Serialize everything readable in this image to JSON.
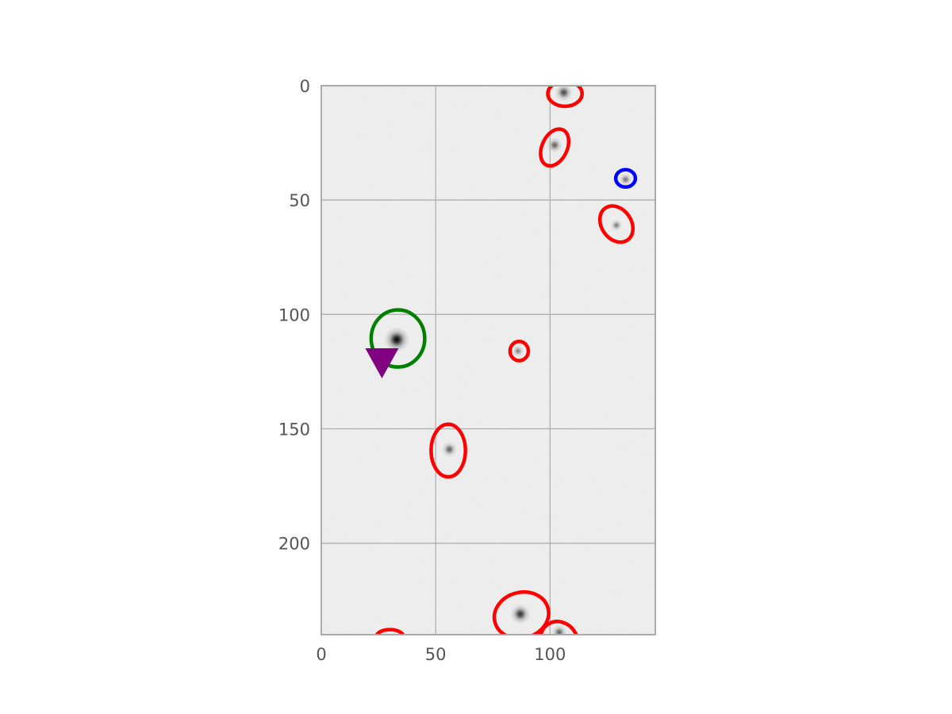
{
  "chart_data": {
    "type": "scatter",
    "title": "",
    "xlabel": "",
    "ylabel": "",
    "xlim": [
      0,
      146
    ],
    "ylim": [
      240,
      0
    ],
    "y_inverted": true,
    "grid": true,
    "background": "grayscale astronomical image",
    "x_ticks": [
      0,
      50,
      100
    ],
    "y_ticks": [
      0,
      50,
      100,
      150,
      200
    ],
    "sources": [
      {
        "x": 106,
        "y": 3,
        "brightness": 0.55
      },
      {
        "x": 102,
        "y": 26,
        "brightness": 0.4
      },
      {
        "x": 133,
        "y": 41,
        "brightness": 0.25
      },
      {
        "x": 129,
        "y": 61,
        "brightness": 0.2
      },
      {
        "x": 33,
        "y": 111,
        "brightness": 1.0
      },
      {
        "x": 86,
        "y": 116,
        "brightness": 0.18
      },
      {
        "x": 56,
        "y": 159,
        "brightness": 0.4
      },
      {
        "x": 87,
        "y": 231,
        "brightness": 0.7
      },
      {
        "x": 104,
        "y": 239,
        "brightness": 0.4
      }
    ],
    "ellipses": [
      {
        "group": "red",
        "x": 106.5,
        "y": 3.5,
        "rx": 7.5,
        "ry": 5.5,
        "angle": 0
      },
      {
        "group": "red",
        "x": 102,
        "y": 27,
        "rx": 5.5,
        "ry": 8.5,
        "angle": 25
      },
      {
        "group": "red",
        "x": 129,
        "y": 60.5,
        "rx": 6.5,
        "ry": 8.5,
        "angle": -35
      },
      {
        "group": "red",
        "x": 86.5,
        "y": 116,
        "rx": 4,
        "ry": 4.2,
        "angle": 0
      },
      {
        "group": "red",
        "x": 55.5,
        "y": 159.5,
        "rx": 7.5,
        "ry": 11.5,
        "angle": 0
      },
      {
        "group": "red",
        "x": 87.5,
        "y": 231.5,
        "rx": 12,
        "ry": 10,
        "angle": -15
      },
      {
        "group": "red",
        "x": 104,
        "y": 243,
        "rx": 8,
        "ry": 9,
        "angle": -30
      },
      {
        "group": "red",
        "x": 30,
        "y": 241,
        "rx": 6,
        "ry": 3.2,
        "angle": 0
      },
      {
        "group": "blue",
        "x": 133,
        "y": 40.5,
        "rx": 4.3,
        "ry": 3.8,
        "angle": 0
      },
      {
        "group": "green",
        "x": 33.5,
        "y": 110.5,
        "rx": 11.7,
        "ry": 12.5,
        "angle": 0
      }
    ],
    "markers": [
      {
        "shape": "triangle-down",
        "x": 26.5,
        "y": 121,
        "color": "#800080"
      }
    ],
    "colors": {
      "red": "#ff0000",
      "blue": "#0000ff",
      "green": "#008000",
      "marker": "#800080",
      "grid": "#b0b0b0",
      "axis": "#aaaaaa",
      "tick_text": "#555555",
      "image_background": "#f3f3f3"
    }
  }
}
